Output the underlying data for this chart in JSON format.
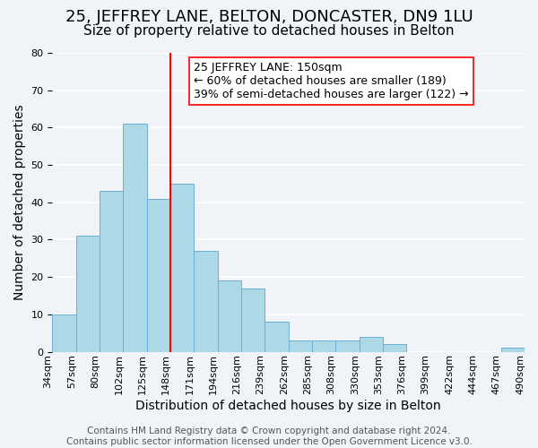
{
  "title": "25, JEFFREY LANE, BELTON, DONCASTER, DN9 1LU",
  "subtitle": "Size of property relative to detached houses in Belton",
  "xlabel": "Distribution of detached houses by size in Belton",
  "ylabel": "Number of detached properties",
  "footer_line1": "Contains HM Land Registry data © Crown copyright and database right 2024.",
  "footer_line2": "Contains public sector information licensed under the Open Government Licence v3.0.",
  "bin_labels": [
    "34sqm",
    "57sqm",
    "80sqm",
    "102sqm",
    "125sqm",
    "148sqm",
    "171sqm",
    "194sqm",
    "216sqm",
    "239sqm",
    "262sqm",
    "285sqm",
    "308sqm",
    "330sqm",
    "353sqm",
    "376sqm",
    "399sqm",
    "422sqm",
    "444sqm",
    "467sqm",
    "490sqm"
  ],
  "bar_heights": [
    10,
    31,
    43,
    61,
    41,
    45,
    27,
    19,
    17,
    8,
    3,
    3,
    3,
    4,
    2,
    0,
    0,
    0,
    0,
    1
  ],
  "bar_color": "#add8e6",
  "bar_edge_color": "#6baed6",
  "reference_line_x": 5,
  "reference_line_color": "red",
  "annotation_text": "25 JEFFREY LANE: 150sqm\n← 60% of detached houses are smaller (189)\n39% of semi-detached houses are larger (122) →",
  "annotation_box_color": "white",
  "annotation_box_edge_color": "red",
  "ylim": [
    0,
    80
  ],
  "yticks": [
    0,
    10,
    20,
    30,
    40,
    50,
    60,
    70,
    80
  ],
  "background_color": "#f0f4f8",
  "grid_color": "white",
  "title_fontsize": 13,
  "subtitle_fontsize": 11,
  "axis_label_fontsize": 10,
  "tick_fontsize": 8,
  "annotation_fontsize": 9,
  "footer_fontsize": 7.5
}
